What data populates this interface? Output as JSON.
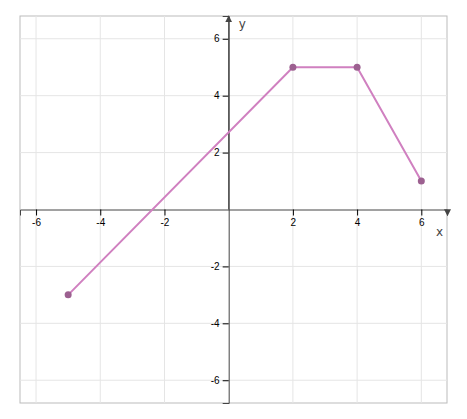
{
  "chart_data": {
    "type": "line",
    "x": [
      -5,
      2,
      4,
      6
    ],
    "series": [
      {
        "values": [
          -3,
          5,
          5,
          1
        ],
        "color": "#d080c0",
        "marker": "circle"
      }
    ],
    "xlabel": "x",
    "ylabel": "y",
    "xlim": [
      -6.5,
      6.8
    ],
    "ylim": [
      -6.8,
      6.8
    ],
    "xticks": [
      -6,
      -4,
      -2,
      2,
      4,
      6
    ],
    "yticks": [
      -6,
      -4,
      -2,
      2,
      4,
      6
    ],
    "grid": true
  }
}
